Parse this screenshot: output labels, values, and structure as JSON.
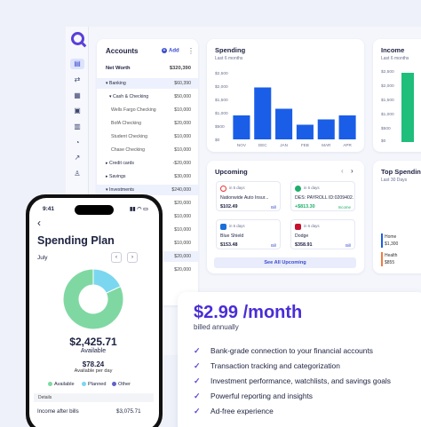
{
  "accounts": {
    "title": "Accounts",
    "add_label": "Add",
    "rows": [
      {
        "label": "Net Worth",
        "amount": "$320,390"
      },
      {
        "label": "Banking",
        "amount": "$60,390"
      },
      {
        "label": "Cash & Checking",
        "amount": "$50,000"
      },
      {
        "label": "Wells Fargo Checking",
        "amount": "$10,000"
      },
      {
        "label": "BofA Checking",
        "amount": "$20,000"
      },
      {
        "label": "Student Checking",
        "amount": "$10,000"
      },
      {
        "label": "Chase Checking",
        "amount": "$10,000"
      },
      {
        "label": "Credit cards",
        "amount": "-$20,000"
      },
      {
        "label": "Savings",
        "amount": "$30,000"
      },
      {
        "label": "Investments",
        "amount": "$240,000"
      },
      {
        "label": "",
        "amount": "$20,000"
      },
      {
        "label": "",
        "amount": "$10,000"
      },
      {
        "label": "",
        "amount": "$10,000"
      },
      {
        "label": "",
        "amount": "$10,000"
      },
      {
        "label": "",
        "amount": "$20,000"
      },
      {
        "label": "",
        "amount": "$20,000"
      }
    ]
  },
  "spending": {
    "title": "Spending",
    "subtitle": "Last 6 months"
  },
  "income": {
    "title": "Income",
    "subtitle": "Last 6 months",
    "ticks": [
      "$2,500",
      "$2,000",
      "$1,500",
      "$1,000",
      "$500",
      "$0"
    ]
  },
  "chart_data": {
    "type": "bar",
    "title": "Spending",
    "categories": [
      "NOV",
      "DEC",
      "JAN",
      "FEB",
      "MAR",
      "APR"
    ],
    "values": [
      900,
      1950,
      1150,
      550,
      750,
      900
    ],
    "ylim": [
      0,
      2500
    ],
    "yticks": [
      "$2,500",
      "$2,000",
      "$1,500",
      "$1,000",
      "$500",
      "$0"
    ],
    "color": "#1a5ee8"
  },
  "upcoming": {
    "title": "Upcoming",
    "items": [
      {
        "days": "in 5 days",
        "name": "Nationwide Auto Insur...",
        "amount": "$102.49",
        "tag": "Bill"
      },
      {
        "days": "in 5 days",
        "name": "DES: PAYROLL ID:0209402...",
        "amount": "+$813.30",
        "tag": "Income"
      },
      {
        "days": "in 6 days",
        "name": "Blue Shield",
        "amount": "$153.48",
        "tag": "Bill"
      },
      {
        "days": "in 6 days",
        "name": "Dodge",
        "amount": "$358.91",
        "tag": "Bill"
      }
    ],
    "see_all": "See All Upcoming"
  },
  "top_spending": {
    "title": "Top Spendin",
    "subtitle": "Last 30 Days",
    "items": [
      {
        "label": "Home",
        "amount": "$1,300"
      },
      {
        "label": "Health",
        "amount": "$855"
      }
    ]
  },
  "pricing": {
    "price": "$2.99 /month",
    "billed": "billed annually",
    "features": [
      "Bank-grade connection to your financial accounts",
      "Transaction tracking and categorization",
      "Investment performance, watchlists, and savings goals",
      "Powerful reporting and insights",
      "Ad-free experience"
    ]
  },
  "phone": {
    "time": "9:41",
    "status": "▮▮ ◠ ▭",
    "title": "Spending Plan",
    "month": "July",
    "amount": "$2,425.71",
    "amount_label": "Available",
    "per_day_amount": "$78.24",
    "per_day_label": "Available per day",
    "legend": [
      "Available",
      "Planned",
      "Other"
    ],
    "details_label": "Details",
    "income_label": "Income after bills",
    "income_amount": "$3,075.71",
    "donut": {
      "available": 0.82,
      "planned": 0.18
    }
  }
}
